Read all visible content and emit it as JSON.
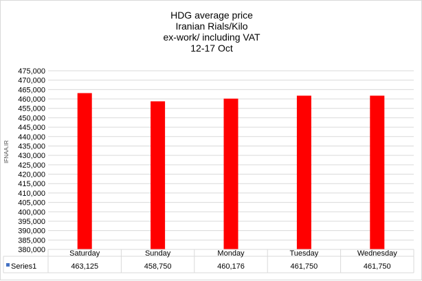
{
  "watermark": "IFNAA.IR",
  "chart_data": {
    "type": "bar",
    "title_lines": [
      "HDG average  price",
      "Iranian  Rials/Kilo",
      "ex-work/ including VAT",
      "12-17  Oct"
    ],
    "categories": [
      "Saturday",
      "Sunday",
      "Monday",
      "Tuesday",
      "Wednesday"
    ],
    "series": [
      {
        "name": "Series1",
        "values": [
          463125,
          458750,
          460176,
          461750,
          461750
        ],
        "value_labels": [
          "463,125",
          "458,750",
          "460,176",
          "461,750",
          "461,750"
        ],
        "color": "#ff0000"
      }
    ],
    "ylim": [
      380000,
      475000
    ],
    "ytick_step": 5000,
    "ytick_labels": [
      "475,000",
      "470,000",
      "465,000",
      "460,000",
      "455,000",
      "450,000",
      "445,000",
      "440,000",
      "435,000",
      "430,000",
      "425,000",
      "420,000",
      "415,000",
      "410,000",
      "405,000",
      "400,000",
      "395,000",
      "390,000",
      "385,000",
      "380,000"
    ],
    "grid": true,
    "data_table": true,
    "legend_color": "#4472c4"
  }
}
